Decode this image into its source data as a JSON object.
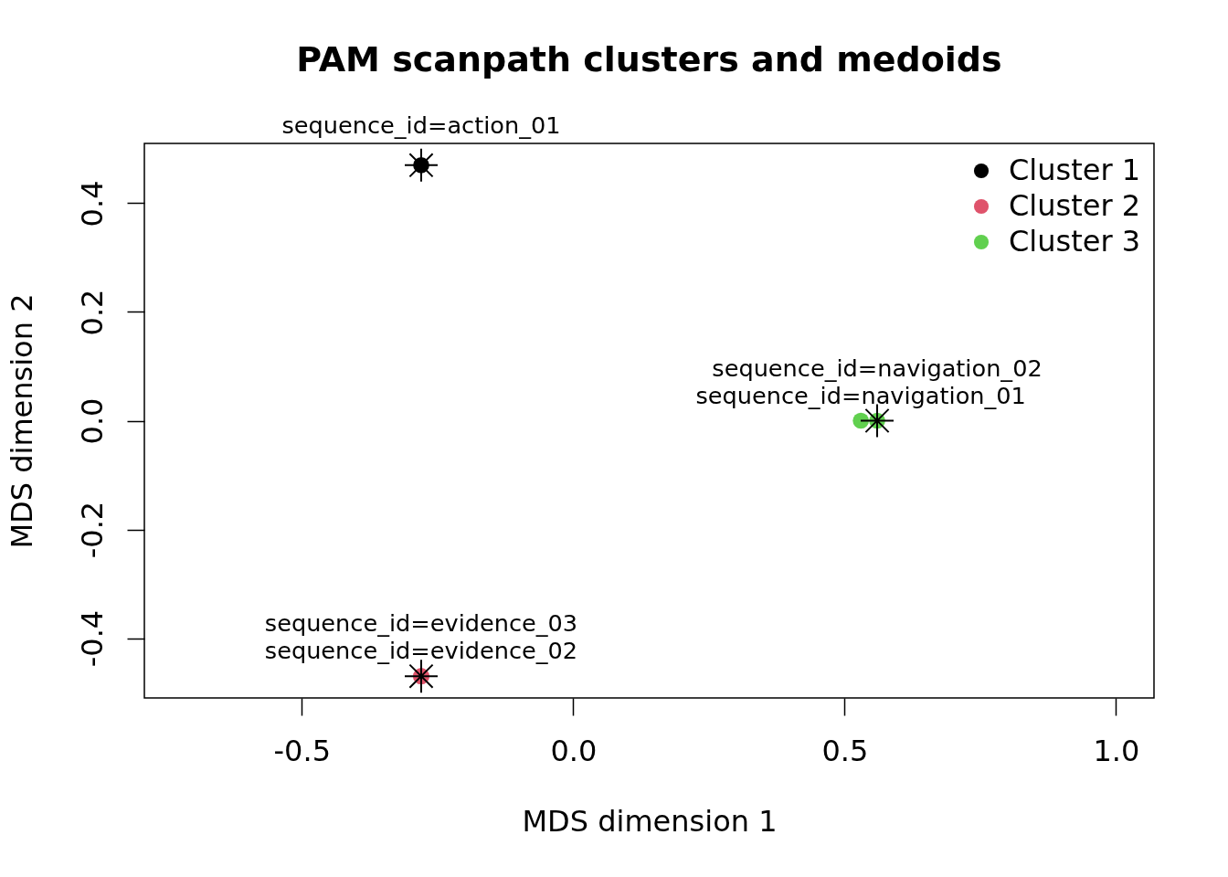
{
  "chart_data": {
    "type": "scatter",
    "title": "PAM scanpath clusters and medoids",
    "xlabel": "MDS dimension 1",
    "ylabel": "MDS dimension 2",
    "marker": "circle",
    "legend": "top right",
    "series": [
      {
        "name": "Cluster 1",
        "color": "#000000",
        "x": [
          -0.28
        ],
        "values": [
          0.47
        ]
      },
      {
        "name": "Cluster 2",
        "color": "#df536b",
        "x": [
          -0.28,
          -0.28
        ],
        "values": [
          -0.47,
          -0.47
        ]
      },
      {
        "name": "Cluster 3",
        "color": "#61d04f",
        "x": [
          0.53,
          0.56
        ],
        "values": [
          0.0,
          0.0
        ]
      },
      {
        "color": "#000000",
        "marker": "cross",
        "x": [
          -0.28,
          -0.28,
          0.56
        ],
        "values": [
          0.47,
          -0.47,
          0.0
        ]
      }
    ],
    "annotations": [
      {
        "text": "sequence_id=action_01",
        "x": -0.28,
        "y": 0.47
      },
      {
        "text": "sequence_id=evidence_02",
        "x": -0.28,
        "y": -0.47
      },
      {
        "text": "sequence_id=evidence_03",
        "x": -0.28,
        "y": -0.47
      },
      {
        "text": "sequence_id=navigation_01",
        "x": 0.53,
        "y": 0.0
      },
      {
        "text": "sequence_id=navigation_02",
        "x": 0.56,
        "y": 0.0
      }
    ],
    "xlim": [
      -0.79,
      1.07
    ],
    "xticks": [
      -0.5,
      {
        "value": 0,
        "label": "0.0"
      },
      0.5,
      {
        "value": 1,
        "label": "1.0"
      }
    ],
    "ylim": [
      -0.51,
      0.51
    ],
    "yticks": [
      -0.4,
      -0.2,
      {
        "value": 0,
        "label": "0.0"
      },
      0.2,
      0.4
    ]
  }
}
